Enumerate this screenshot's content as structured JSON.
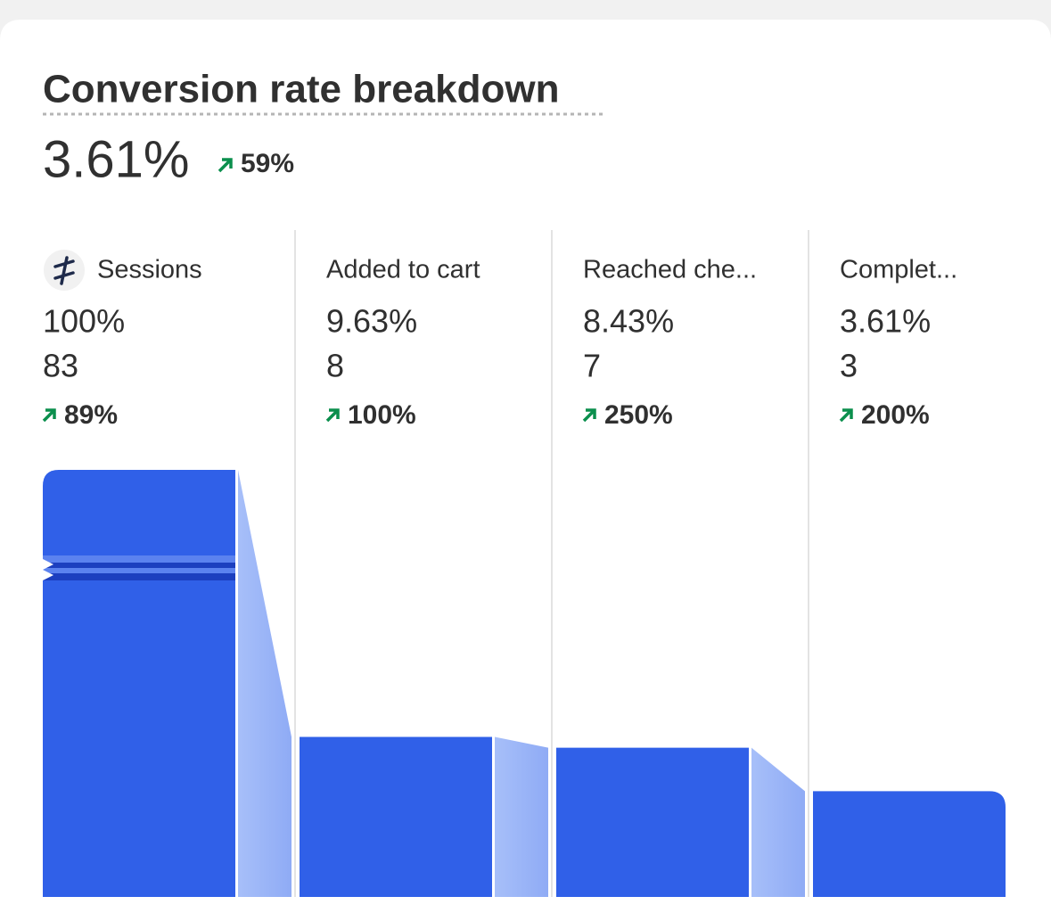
{
  "chart_data": {
    "type": "funnel",
    "title": "Conversion rate breakdown",
    "total": "3.61%",
    "total_change": "59%",
    "categories": [
      "Sessions",
      "Added to cart",
      "Reached che...",
      "Complet..."
    ],
    "values": [
      100,
      9.63,
      8.43,
      3.61
    ],
    "value_labels": [
      "100%",
      "9.63%",
      "8.43%",
      "3.61%"
    ],
    "counts": [
      83,
      8,
      7,
      3
    ],
    "changes": [
      "89%",
      "100%",
      "250%",
      "200%"
    ],
    "color": "#3060e8"
  }
}
